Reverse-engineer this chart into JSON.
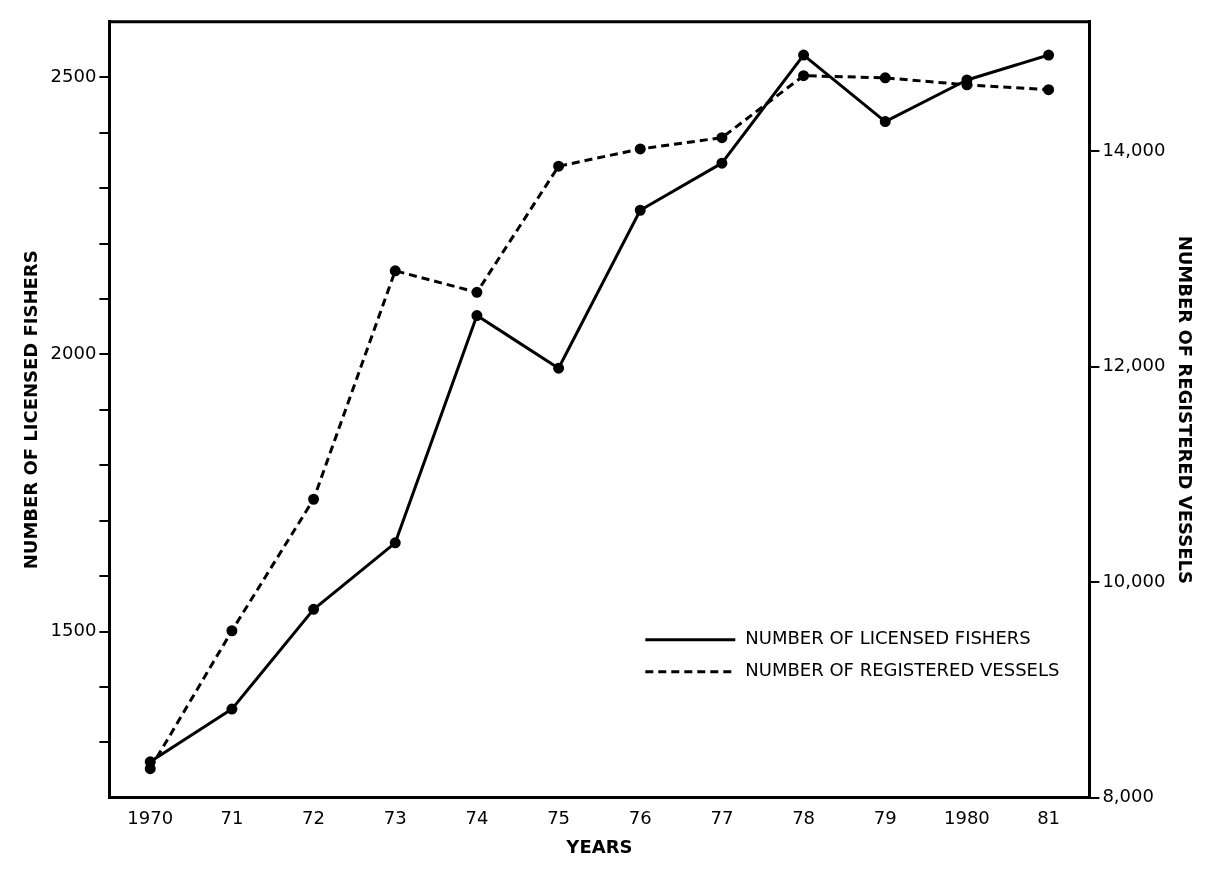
{
  "chart_data": {
    "type": "line",
    "xlabel": "YEARS",
    "ylabel": "NUMBER OF LICENSED FISHERS",
    "y2label": "NUMBER OF REGISTERED VESSELS",
    "categories": [
      "1970",
      "71",
      "72",
      "73",
      "74",
      "75",
      "76",
      "77",
      "78",
      "79",
      "1980",
      "81"
    ],
    "series": [
      {
        "name": "NUMBER OF LICENSED FISHERS",
        "color": "#000000",
        "line_style": "solid",
        "values": [
          1265,
          1360,
          1540,
          1660,
          2070,
          1975,
          2260,
          2345,
          2540,
          2420,
          2495,
          2540
        ]
      },
      {
        "name": "NUMBER OF REGISTERED VESSELS",
        "color": "#000000",
        "line_style": "dashed",
        "axis": "y2",
        "values": [
          8270,
          9550,
          10770,
          12890,
          12690,
          13860,
          14020,
          14125,
          14700,
          14680,
          14615,
          14570
        ]
      }
    ],
    "ylim": [
      1200,
      2600
    ],
    "yticks": [
      {
        "value": 1300,
        "label": null
      },
      {
        "value": 1400,
        "label": null
      },
      1500,
      {
        "value": 1600,
        "label": null
      },
      {
        "value": 1700,
        "label": null
      },
      {
        "value": 1800,
        "label": null
      },
      {
        "value": 1900,
        "label": null
      },
      2000,
      {
        "value": 2100,
        "label": null
      },
      {
        "value": 2200,
        "label": null
      },
      {
        "value": 2300,
        "label": null
      },
      {
        "value": 2400,
        "label": null
      },
      2500
    ],
    "y2lim": [
      8000,
      15200
    ],
    "y2ticks": [
      {
        "value": 8000,
        "label": "8,000"
      },
      {
        "value": 10000,
        "label": "10,000"
      },
      {
        "value": 12000,
        "label": "12,000"
      },
      {
        "value": 14000,
        "label": "14,000"
      }
    ],
    "grid": false,
    "legend": "bottom right",
    "marker": "circle"
  }
}
